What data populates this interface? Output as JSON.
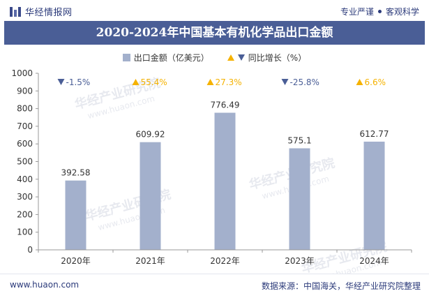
{
  "header": {
    "brand": "华经情报网",
    "slogan_left": "专业严谨",
    "slogan_right": "客观科学"
  },
  "title": "2020-2024年中国基本有机化学品出口金额",
  "legend": {
    "bar_label": "出口金额（亿美元）",
    "growth_label": "同比增长（%）"
  },
  "watermark": "华经产业研究院",
  "watermark_url": "www.huaon.com",
  "footer": {
    "url": "www.huaon.com",
    "source": "数据来源：中国海关，华经产业研究院整理"
  },
  "colors": {
    "bar": "#a3b0cc",
    "up": "#f5b200",
    "down": "#4a5e96",
    "title_bg": "#4a5e96"
  },
  "chart_data": {
    "type": "bar",
    "categories": [
      "2020年",
      "2021年",
      "2022年",
      "2023年",
      "2024年"
    ],
    "series": [
      {
        "name": "出口金额（亿美元）",
        "values": [
          392.58,
          609.92,
          776.49,
          575.1,
          612.77
        ]
      },
      {
        "name": "同比增长（%）",
        "values": [
          -1.5,
          55.4,
          27.3,
          -25.8,
          6.6
        ]
      }
    ],
    "value_labels": [
      "392.58",
      "609.92",
      "776.49",
      "575.1",
      "612.77"
    ],
    "growth_labels": [
      "-1.5%",
      "55.4%",
      "27.3%",
      "-25.8%",
      "6.6%"
    ],
    "growth_direction": [
      "down",
      "up",
      "up",
      "down",
      "up"
    ],
    "ylim": [
      0,
      1000
    ],
    "yticks": [
      0,
      100,
      200,
      300,
      400,
      500,
      600,
      700,
      800,
      900,
      1000
    ],
    "grid": false
  }
}
